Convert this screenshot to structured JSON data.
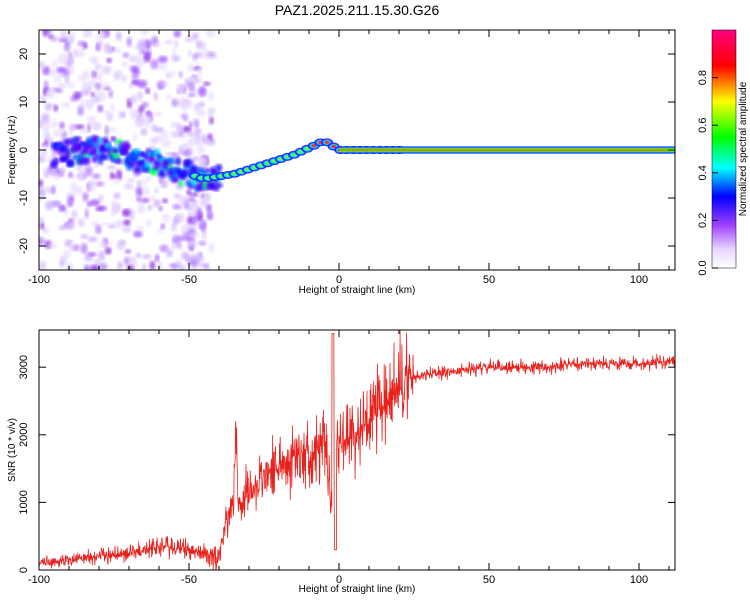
{
  "title": "PAZ1.2025.211.15.30.G26",
  "chart_data": [
    {
      "type": "heatmap",
      "xlabel": "Height of straight line (km)",
      "ylabel": "Frequency (Hz)",
      "xlim": [
        -100,
        112
      ],
      "ylim": [
        -25,
        25
      ],
      "xticks": [
        -100,
        -50,
        0,
        50,
        100
      ],
      "yticks": [
        -20,
        -10,
        0,
        10,
        20
      ],
      "colorbar": {
        "label": "Normalized spectral amplitude",
        "range": [
          0,
          1
        ],
        "ticks": [
          "0.0",
          "0.2",
          "0.4",
          "0.6",
          "0.8"
        ],
        "colors": [
          "#ffffff",
          "#dcc8ff",
          "#9f3cff",
          "#0000ff",
          "#00ffff",
          "#00ff00",
          "#ffff00",
          "#ff0000",
          "#ff0080"
        ]
      },
      "ridge": {
        "x": [
          -95,
          -85,
          -75,
          -65,
          -55,
          -45,
          -35,
          -25,
          -15,
          -8,
          -5,
          0,
          10,
          20,
          40,
          60,
          80,
          112
        ],
        "y": [
          -1,
          0,
          0,
          -2,
          -4,
          -6,
          -5,
          -3,
          -1,
          1,
          2,
          0,
          0,
          0,
          0,
          0,
          0,
          0
        ]
      }
    },
    {
      "type": "line",
      "xlabel": "Height of straight line (km)",
      "ylabel": "SNR (10 * v/v)",
      "xlim": [
        -100,
        112
      ],
      "ylim": [
        0,
        3550
      ],
      "xticks": [
        -100,
        -50,
        0,
        50,
        100
      ],
      "yticks": [
        0,
        1000,
        2000,
        3000
      ],
      "color": "#e8211c",
      "series": [
        {
          "x": [
            -100,
            -90,
            -80,
            -70,
            -60,
            -50,
            -45,
            -40,
            -38,
            -36,
            -34,
            -32,
            -30,
            -25,
            -20,
            -15,
            -10,
            -5,
            -3,
            -2,
            -1,
            0,
            5,
            10,
            15,
            20,
            25,
            30,
            40,
            50,
            60,
            70,
            75,
            80,
            90,
            100,
            112
          ],
          "y": [
            100,
            150,
            200,
            250,
            350,
            300,
            250,
            200,
            700,
            900,
            1100,
            1000,
            1200,
            1400,
            1550,
            1650,
            1750,
            1850,
            1200,
            400,
            1850,
            1900,
            2000,
            2200,
            2400,
            2700,
            2850,
            2900,
            2950,
            3000,
            3000,
            3000,
            3050,
            3050,
            3050,
            3050,
            3100
          ]
        }
      ]
    }
  ]
}
